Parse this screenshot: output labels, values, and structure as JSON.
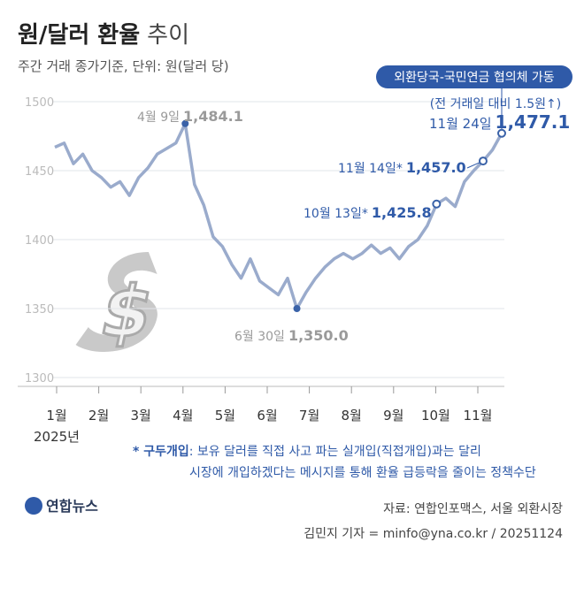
{
  "chart_data": {
    "type": "line",
    "title": "원/달러 환율",
    "title_suffix": "추이",
    "subtitle": "주간 거래 종가기준, 단위: 원(달러 당)",
    "xticks": [
      "1월",
      "2월",
      "3월",
      "4월",
      "5월",
      "6월",
      "7월",
      "8월",
      "9월",
      "10월",
      "11월"
    ],
    "xtick_sublabel": "2025년",
    "ylim": [
      1300,
      1500
    ],
    "yticks": [
      1300,
      1350,
      1400,
      1450,
      1500
    ],
    "grid": true,
    "series": [
      {
        "color": "#9aabcc",
        "values": [
          1467,
          1470,
          1455,
          1462,
          1450,
          1445,
          1438,
          1442,
          1432,
          1445,
          1452,
          1462,
          1466,
          1470,
          1484.1,
          1440,
          1425,
          1402,
          1395,
          1382,
          1372,
          1386,
          1370,
          1365,
          1360,
          1372,
          1350.0,
          1362,
          1372,
          1380,
          1386,
          1390,
          1386,
          1390,
          1396,
          1390,
          1394,
          1386,
          1395,
          1400,
          1410,
          1425.8,
          1430,
          1424,
          1442,
          1450,
          1457.0,
          1465,
          1477.1
        ]
      }
    ],
    "marker_color": "#3a62a8",
    "annotations": [
      {
        "label": "4월 9일",
        "value": 1484.1,
        "value_label": "1,484.1",
        "color": "#9a9a9a"
      },
      {
        "label": "6월 30일",
        "value": 1350.0,
        "value_label": "1,350.0",
        "color": "#9a9a9a"
      },
      {
        "label": "10월 13일*",
        "value": 1425.8,
        "value_label": "1,425.8",
        "color": "#2f5aa8"
      },
      {
        "label": "11월 14일*",
        "value": 1457.0,
        "value_label": "1,457.0",
        "color": "#2f5aa8"
      },
      {
        "label": "11월 24일",
        "value": 1477.1,
        "value_label": "1,477.1",
        "color": "#2f5aa8"
      }
    ],
    "event": {
      "badge": "외환당국-국민연금 협의체 가동",
      "note": "(전 거래일 대비 1.5원↑)"
    },
    "footnote": {
      "term": "* 구두개입",
      "lines": [
        ": 보유 달러를 직접 사고 파는 실개입(직접개입)과는 달리",
        "시장에 개입하겠다는 메시지를 통해 환율 급등락을 줄이는 정책수단"
      ]
    },
    "logo": "연합뉴스",
    "source": "자료: 연합인포맥스, 서울 외환시장",
    "credit": "김민지 기자 = minfo@yna.co.kr / 20251124"
  }
}
